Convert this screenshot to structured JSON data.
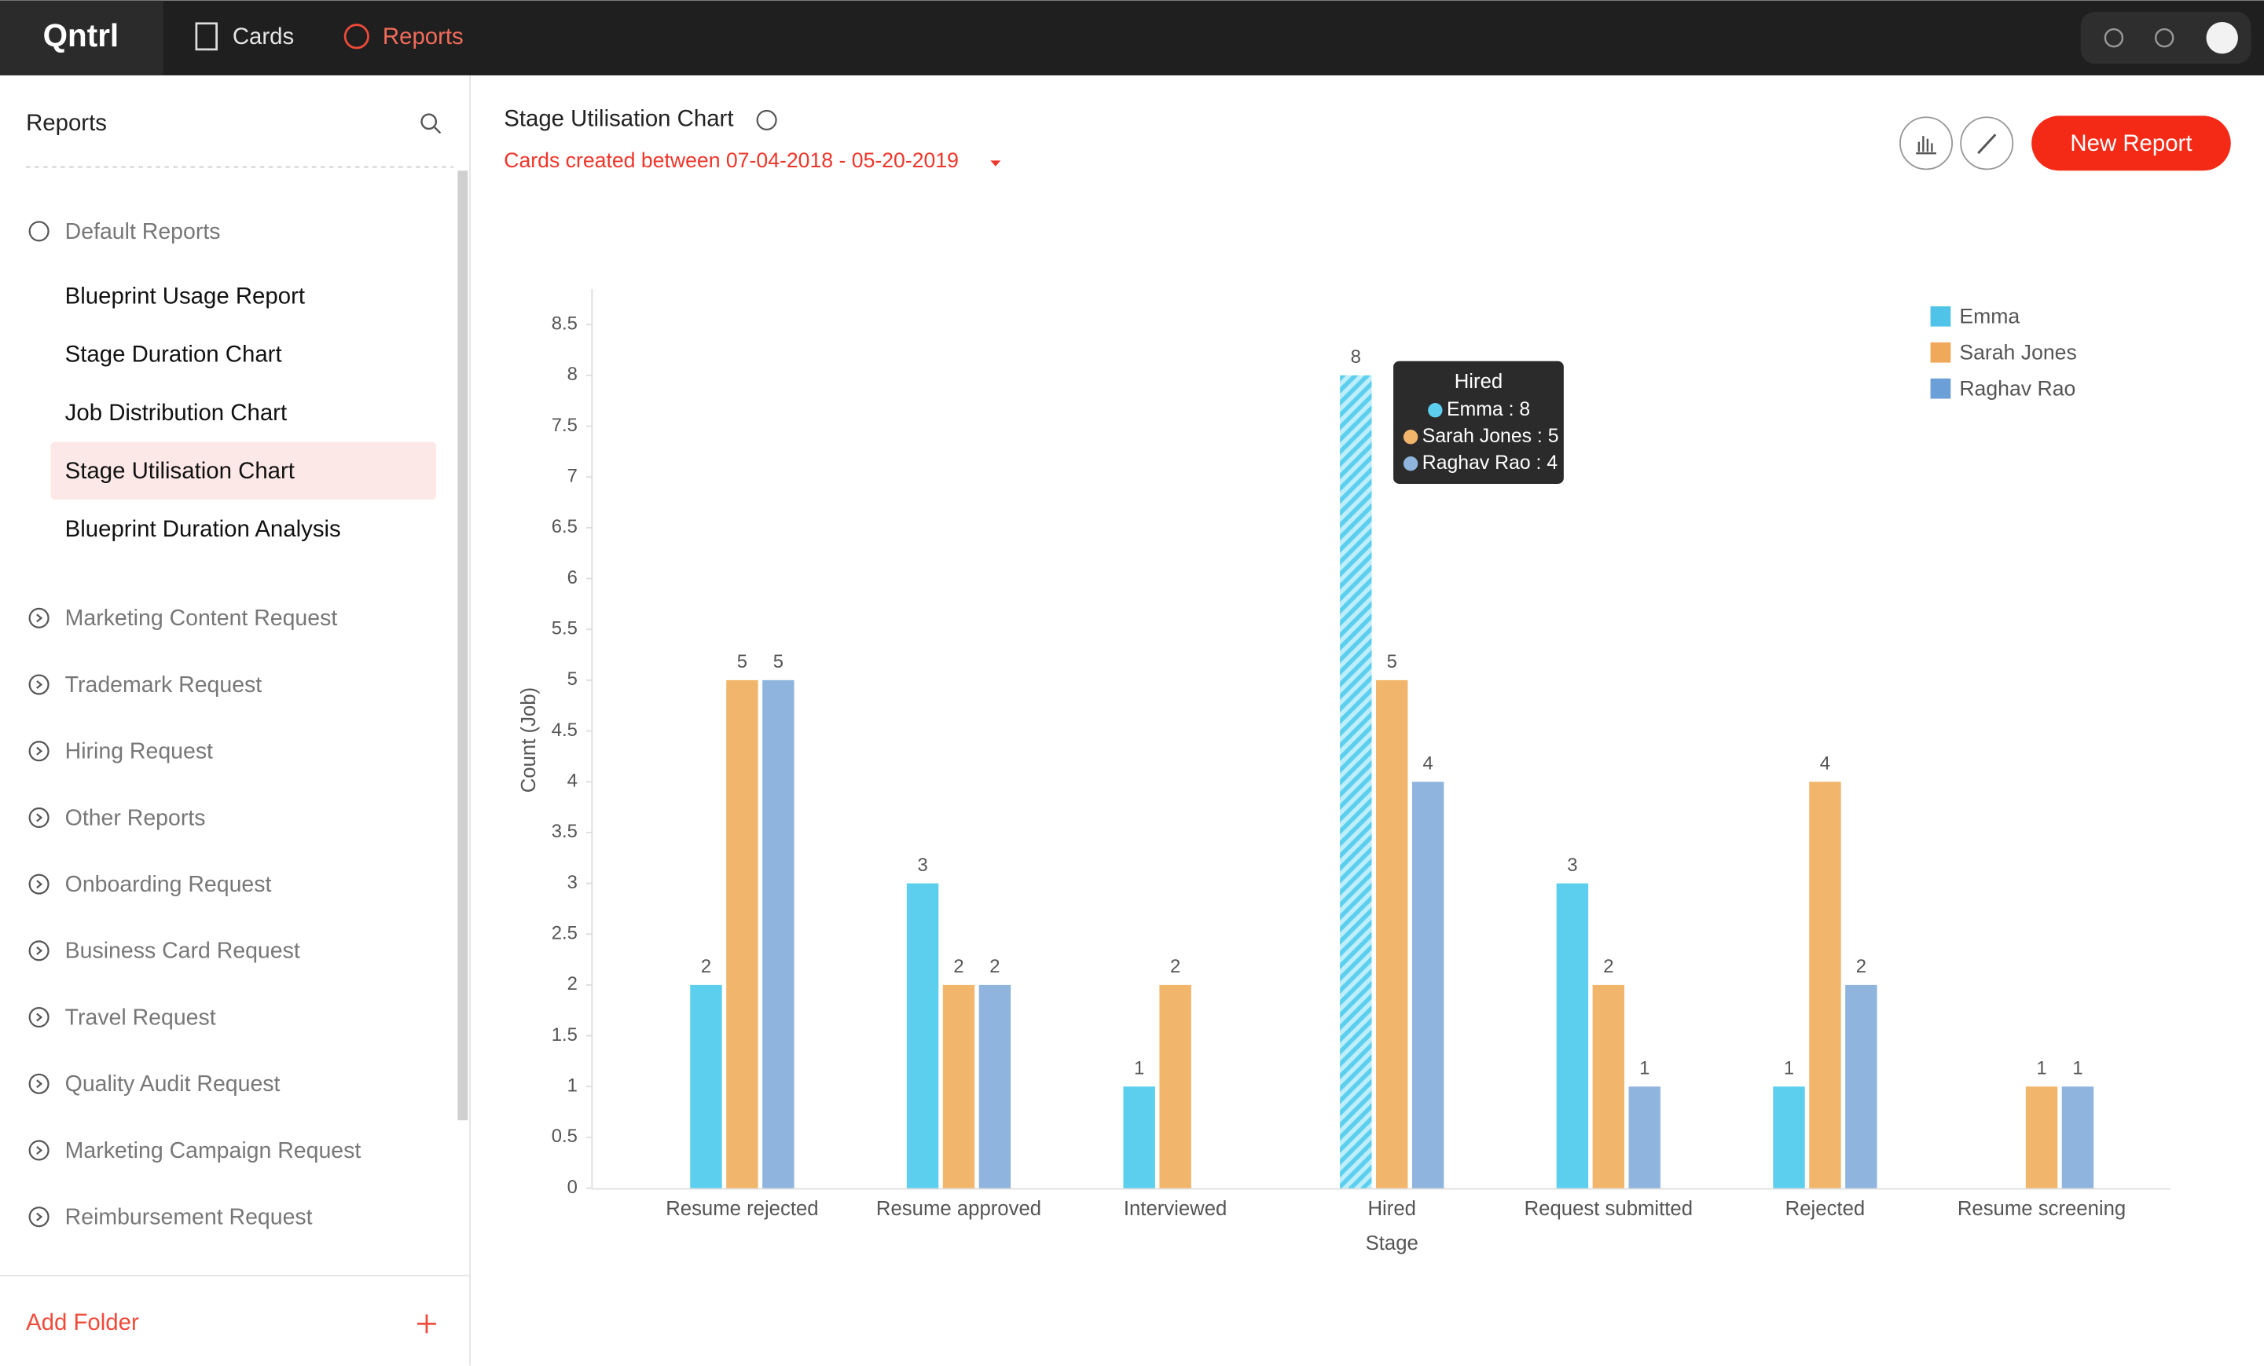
{
  "nav": {
    "logo": "Qntrl",
    "items": [
      "Cards",
      "Reports"
    ]
  },
  "sidebar": {
    "title": "Reports",
    "default_folder": "Default Reports",
    "default_reports": [
      "Blueprint Usage Report",
      "Stage Duration Chart",
      "Job Distribution Chart",
      "Stage Utilisation Chart",
      "Blueprint Duration Analysis"
    ],
    "folders": [
      "Marketing Content Request",
      "Trademark Request",
      "Hiring Request",
      "Other Reports",
      "Onboarding Request",
      "Business Card Request",
      "Travel Request",
      "Quality Audit Request",
      "Marketing Campaign Request",
      "Reimbursement Request"
    ],
    "add_folder": "Add Folder"
  },
  "header": {
    "title": "Stage Utilisation Chart",
    "filter": "Cards created between 07-04-2018 - 05-20-2019",
    "new_report": "New Report"
  },
  "chart_data": {
    "type": "bar",
    "x_label": "Stage",
    "y_label": "Count (Job)",
    "categories": [
      "Resume rejected",
      "Resume approved",
      "Interviewed",
      "Hired",
      "Request submitted",
      "Rejected",
      "Resume screening"
    ],
    "series": [
      {
        "name": "Emma",
        "color": "#5ccfee",
        "values": [
          2,
          3,
          1,
          8,
          3,
          1,
          null
        ]
      },
      {
        "name": "Sarah Jones",
        "color": "#f2b56c",
        "values": [
          5,
          2,
          2,
          5,
          2,
          4,
          1
        ]
      },
      {
        "name": "Raghav Rao",
        "color": "#8fb5df",
        "values": [
          5,
          2,
          null,
          4,
          1,
          2,
          1
        ]
      }
    ],
    "legend_colors": [
      "#4fc3e8",
      "#f0a95a",
      "#6a9fd8"
    ],
    "ylim": [
      0,
      8.85
    ],
    "yticks": [
      0,
      0.5,
      1,
      1.5,
      2,
      2.5,
      3,
      3.5,
      4,
      4.5,
      5,
      5.5,
      6,
      6.5,
      7,
      7.5,
      8,
      8.5
    ],
    "legend": "top-right",
    "tooltip": {
      "title": "Hired",
      "items": [
        "Emma : 8",
        "Sarah Jones : 5",
        "Raghav Rao : 4"
      ]
    }
  }
}
